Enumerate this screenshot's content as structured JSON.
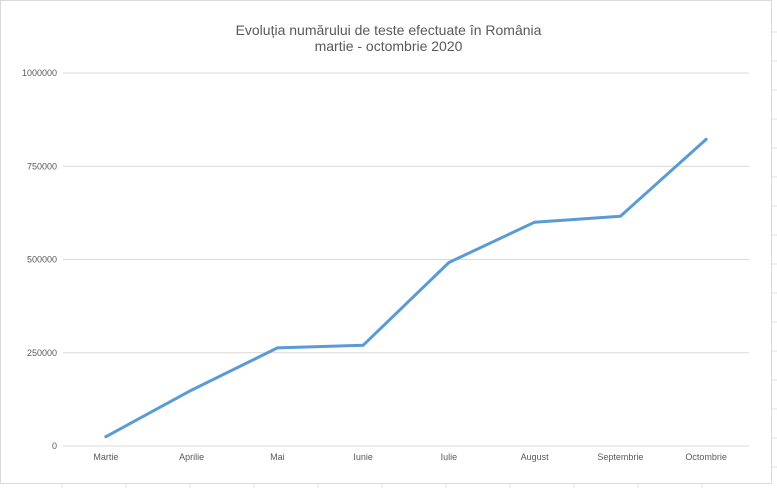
{
  "chart_data": {
    "type": "line",
    "title": "Evoluția numărului de teste efectuate în România",
    "subtitle": "martie - octombrie 2020",
    "xlabel": "",
    "ylabel": "",
    "categories": [
      "Martie",
      "Aprilie",
      "Mai",
      "Iunie",
      "Iulie",
      "August",
      "Septembrie",
      "Octombrie"
    ],
    "series": [
      {
        "values": [
          25000,
          150000,
          263000,
          270000,
          492000,
          600000,
          616000,
          822000
        ]
      }
    ],
    "ylim": [
      0,
      1000000
    ],
    "yticks": [
      0,
      250000,
      500000,
      750000,
      1000000
    ],
    "ytick_labels": [
      "0",
      "250000",
      "500000",
      "750000",
      "1000000"
    ],
    "grid": true,
    "legend": "none",
    "colors": {
      "series": "#5b9bd5",
      "grid": "#d9d9d9",
      "text": "#595959"
    }
  }
}
